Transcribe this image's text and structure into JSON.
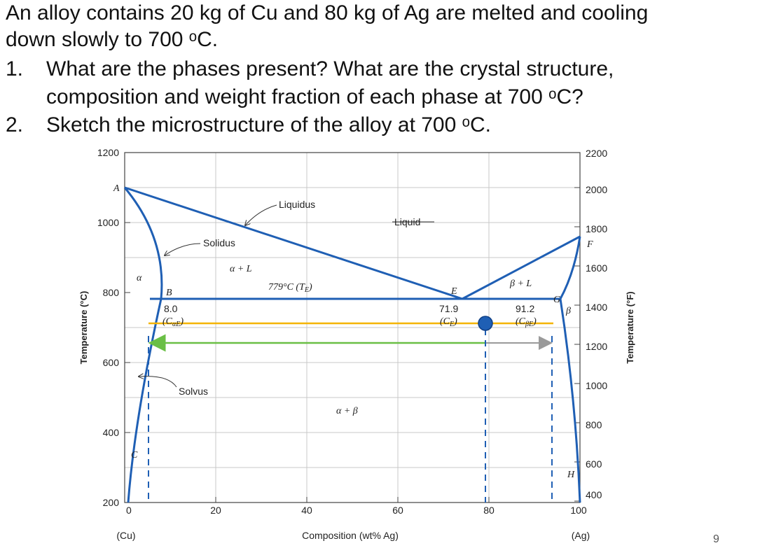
{
  "question": {
    "intro_line1": "An alloy contains 20 kg of Cu and 80 kg of Ag are melted and cooling",
    "intro_line2": "down slowly to 700 ᵒC.",
    "item1_num": "1.",
    "item1_line1": "What are the phases present? What are the crystal structure,",
    "item1_line2": "composition and weight fraction of each phase at 700 ᵒC?",
    "item2_num": "2.",
    "item2_line1": "Sketch the microstructure of the alloy at 700 ᵒC."
  },
  "diagram": {
    "left_axis_title": "Temperature (°C)",
    "right_axis_title": "Temperature (°F)",
    "x_axis_title": "Composition (wt% Ag)",
    "x_end_left": "(Cu)",
    "x_end_right": "(Ag)",
    "x_ticks": [
      "0",
      "20",
      "40",
      "60",
      "80",
      "100"
    ],
    "y_left_ticks": [
      "200",
      "400",
      "600",
      "800",
      "1000",
      "1200"
    ],
    "y_right_ticks": [
      "400",
      "600",
      "800",
      "1000",
      "1200",
      "1400",
      "1600",
      "1800",
      "2000",
      "2200"
    ],
    "labels": {
      "liquidus": "Liquidus",
      "liquid": "Liquid",
      "solidus": "Solidus",
      "solvus": "Solvus",
      "alpha_plus_L": "α + L",
      "beta_plus_L": "β + L",
      "alpha_plus_beta": "α + β",
      "eutectic_temp": "779°C (T",
      "eutectic_temp_sub": "E",
      "alpha": "α",
      "beta": "β",
      "A": "A",
      "B": "B",
      "C": "C",
      "E": "E",
      "F": "F",
      "G": "G",
      "H": "H",
      "c_alpha_val": "8.0",
      "c_alpha_sym": "(C",
      "c_alpha_sub": "αE",
      "c_e_val": "71.9",
      "c_e_sym": "(C",
      "c_e_sub": "E",
      "c_beta_val": "91.2",
      "c_beta_sym": "(C",
      "c_beta_sub": "βE"
    },
    "colors": {
      "phase_lines": "#1f5fb4",
      "tie_line_700": "#f4b400",
      "lever_green": "#6abf45",
      "lever_gray": "#9a9a9a",
      "alloy_point": "#1f5fb4",
      "dashed_guides": "#1f5fb4"
    },
    "key_points": {
      "eutectic_temperature_c": 779,
      "eutectic_composition": 71.9,
      "alpha_max_solubility": 8.0,
      "beta_max_solubility": 91.2,
      "alloy_composition": 80,
      "alloy_temperature_c": 700
    }
  },
  "page_number": "9"
}
